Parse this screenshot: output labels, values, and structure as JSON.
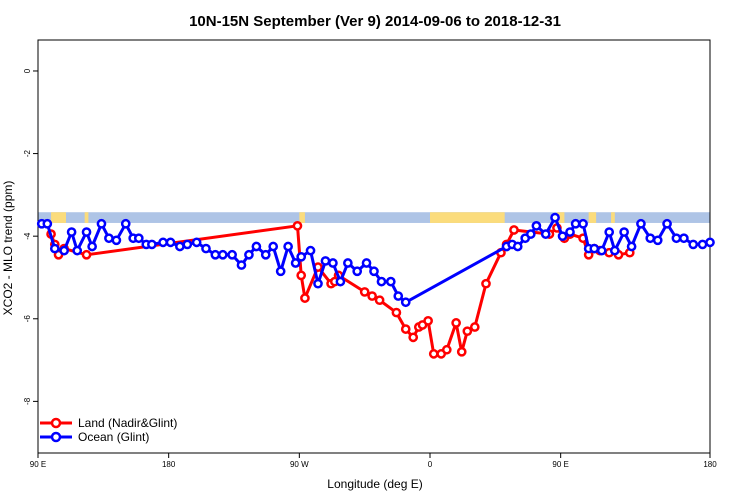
{
  "chart_data": {
    "type": "line",
    "title": "10N-15N September (Ver 9)   2014-09-06 to 2018-12-31",
    "xlabel": "Longitude (deg E)",
    "ylabel": "XCO2 - MLO trend (ppm)",
    "xlim": [
      90,
      450
    ],
    "ylim": [
      -9.25,
      0.75
    ],
    "x_ticks": [
      {
        "value": 90,
        "label": "90 E"
      },
      {
        "value": 160,
        "label": "180"
      },
      {
        "value": 230,
        "label": "90 W"
      },
      {
        "value": 300,
        "label": "0"
      },
      {
        "value": 370,
        "label": "90 E"
      },
      {
        "value": 450,
        "label": "180"
      }
    ],
    "y_ticks": [
      {
        "value": 0,
        "label": "0"
      },
      {
        "value": -2,
        "label": "-2"
      },
      {
        "value": -4,
        "label": "-4"
      },
      {
        "value": -6,
        "label": "-6"
      },
      {
        "value": -8,
        "label": "-8"
      }
    ],
    "land_band": {
      "y_top": -3.42,
      "y_bottom": -3.68,
      "ocean_color": "#aec4e6",
      "land_color": "#fbdc7c",
      "land_segments": [
        [
          97,
          105
        ],
        [
          115,
          117
        ],
        [
          230,
          233
        ],
        [
          300,
          340
        ],
        [
          368,
          372
        ],
        [
          385,
          389
        ],
        [
          397,
          399
        ]
      ]
    },
    "series": [
      {
        "name": "Land (Nadir&Glint)",
        "color": "#ff0000",
        "x": [
          97,
          99,
          101,
          104,
          116,
          229,
          231,
          233,
          240,
          247,
          249,
          251,
          265,
          269,
          273,
          282,
          287,
          291,
          294,
          296,
          299,
          302,
          306,
          309,
          314,
          317,
          320,
          324,
          330,
          338,
          341,
          345,
          364,
          368,
          372,
          375,
          382,
          385,
          388,
          391,
          396,
          401,
          407
        ],
        "y": [
          -3.95,
          -4.2,
          -4.45,
          -4.3,
          -4.45,
          -3.75,
          -4.95,
          -5.5,
          -4.75,
          -5.15,
          -5.1,
          -4.95,
          -5.35,
          -5.45,
          -5.55,
          -5.85,
          -6.25,
          -6.45,
          -6.2,
          -6.15,
          -6.05,
          -6.85,
          -6.85,
          -6.75,
          -6.1,
          -6.8,
          -6.3,
          -6.2,
          -5.15,
          -4.4,
          -4.2,
          -3.85,
          -3.95,
          -3.8,
          -4.05,
          -3.95,
          -4.05,
          -4.45,
          -4.3,
          -4.35,
          -4.4,
          -4.45,
          -4.4
        ]
      },
      {
        "name": "Ocean (Glint)",
        "color": "#0000ff",
        "x": [
          92,
          95,
          99,
          104,
          108,
          111,
          116,
          119,
          124,
          128,
          132,
          137,
          141,
          144,
          148,
          151,
          157,
          161,
          166,
          170,
          175,
          180,
          185,
          189,
          194,
          199,
          203,
          207,
          212,
          216,
          220,
          224,
          228,
          231,
          236,
          240,
          244,
          248,
          252,
          256,
          261,
          266,
          270,
          274,
          279,
          283,
          287,
          341,
          344,
          347,
          351,
          354,
          357,
          362,
          367,
          371,
          375,
          378,
          382,
          385,
          388,
          392,
          396,
          399,
          404,
          408,
          413,
          418,
          422,
          427,
          432,
          436,
          441,
          446,
          450
        ],
        "y": [
          -3.7,
          -3.7,
          -4.3,
          -4.35,
          -3.9,
          -4.35,
          -3.9,
          -4.25,
          -3.7,
          -4.05,
          -4.1,
          -3.7,
          -4.05,
          -4.05,
          -4.2,
          -4.2,
          -4.15,
          -4.15,
          -4.25,
          -4.2,
          -4.15,
          -4.3,
          -4.45,
          -4.45,
          -4.45,
          -4.7,
          -4.45,
          -4.25,
          -4.45,
          -4.25,
          -4.85,
          -4.25,
          -4.65,
          -4.5,
          -4.35,
          -5.15,
          -4.6,
          -4.65,
          -5.1,
          -4.65,
          -4.85,
          -4.65,
          -4.85,
          -5.1,
          -5.1,
          -5.45,
          -5.6,
          -4.25,
          -4.2,
          -4.25,
          -4.05,
          -3.95,
          -3.75,
          -3.95,
          -3.55,
          -4.0,
          -3.9,
          -3.7,
          -3.7,
          -4.3,
          -4.3,
          -4.35,
          -3.9,
          -4.35,
          -3.9,
          -4.25,
          -3.7,
          -4.05,
          -4.1,
          -3.7,
          -4.05,
          -4.05,
          -4.2,
          -4.2,
          -4.15
        ]
      }
    ],
    "legend": {
      "placement": "bottom-left"
    },
    "grid": false
  }
}
